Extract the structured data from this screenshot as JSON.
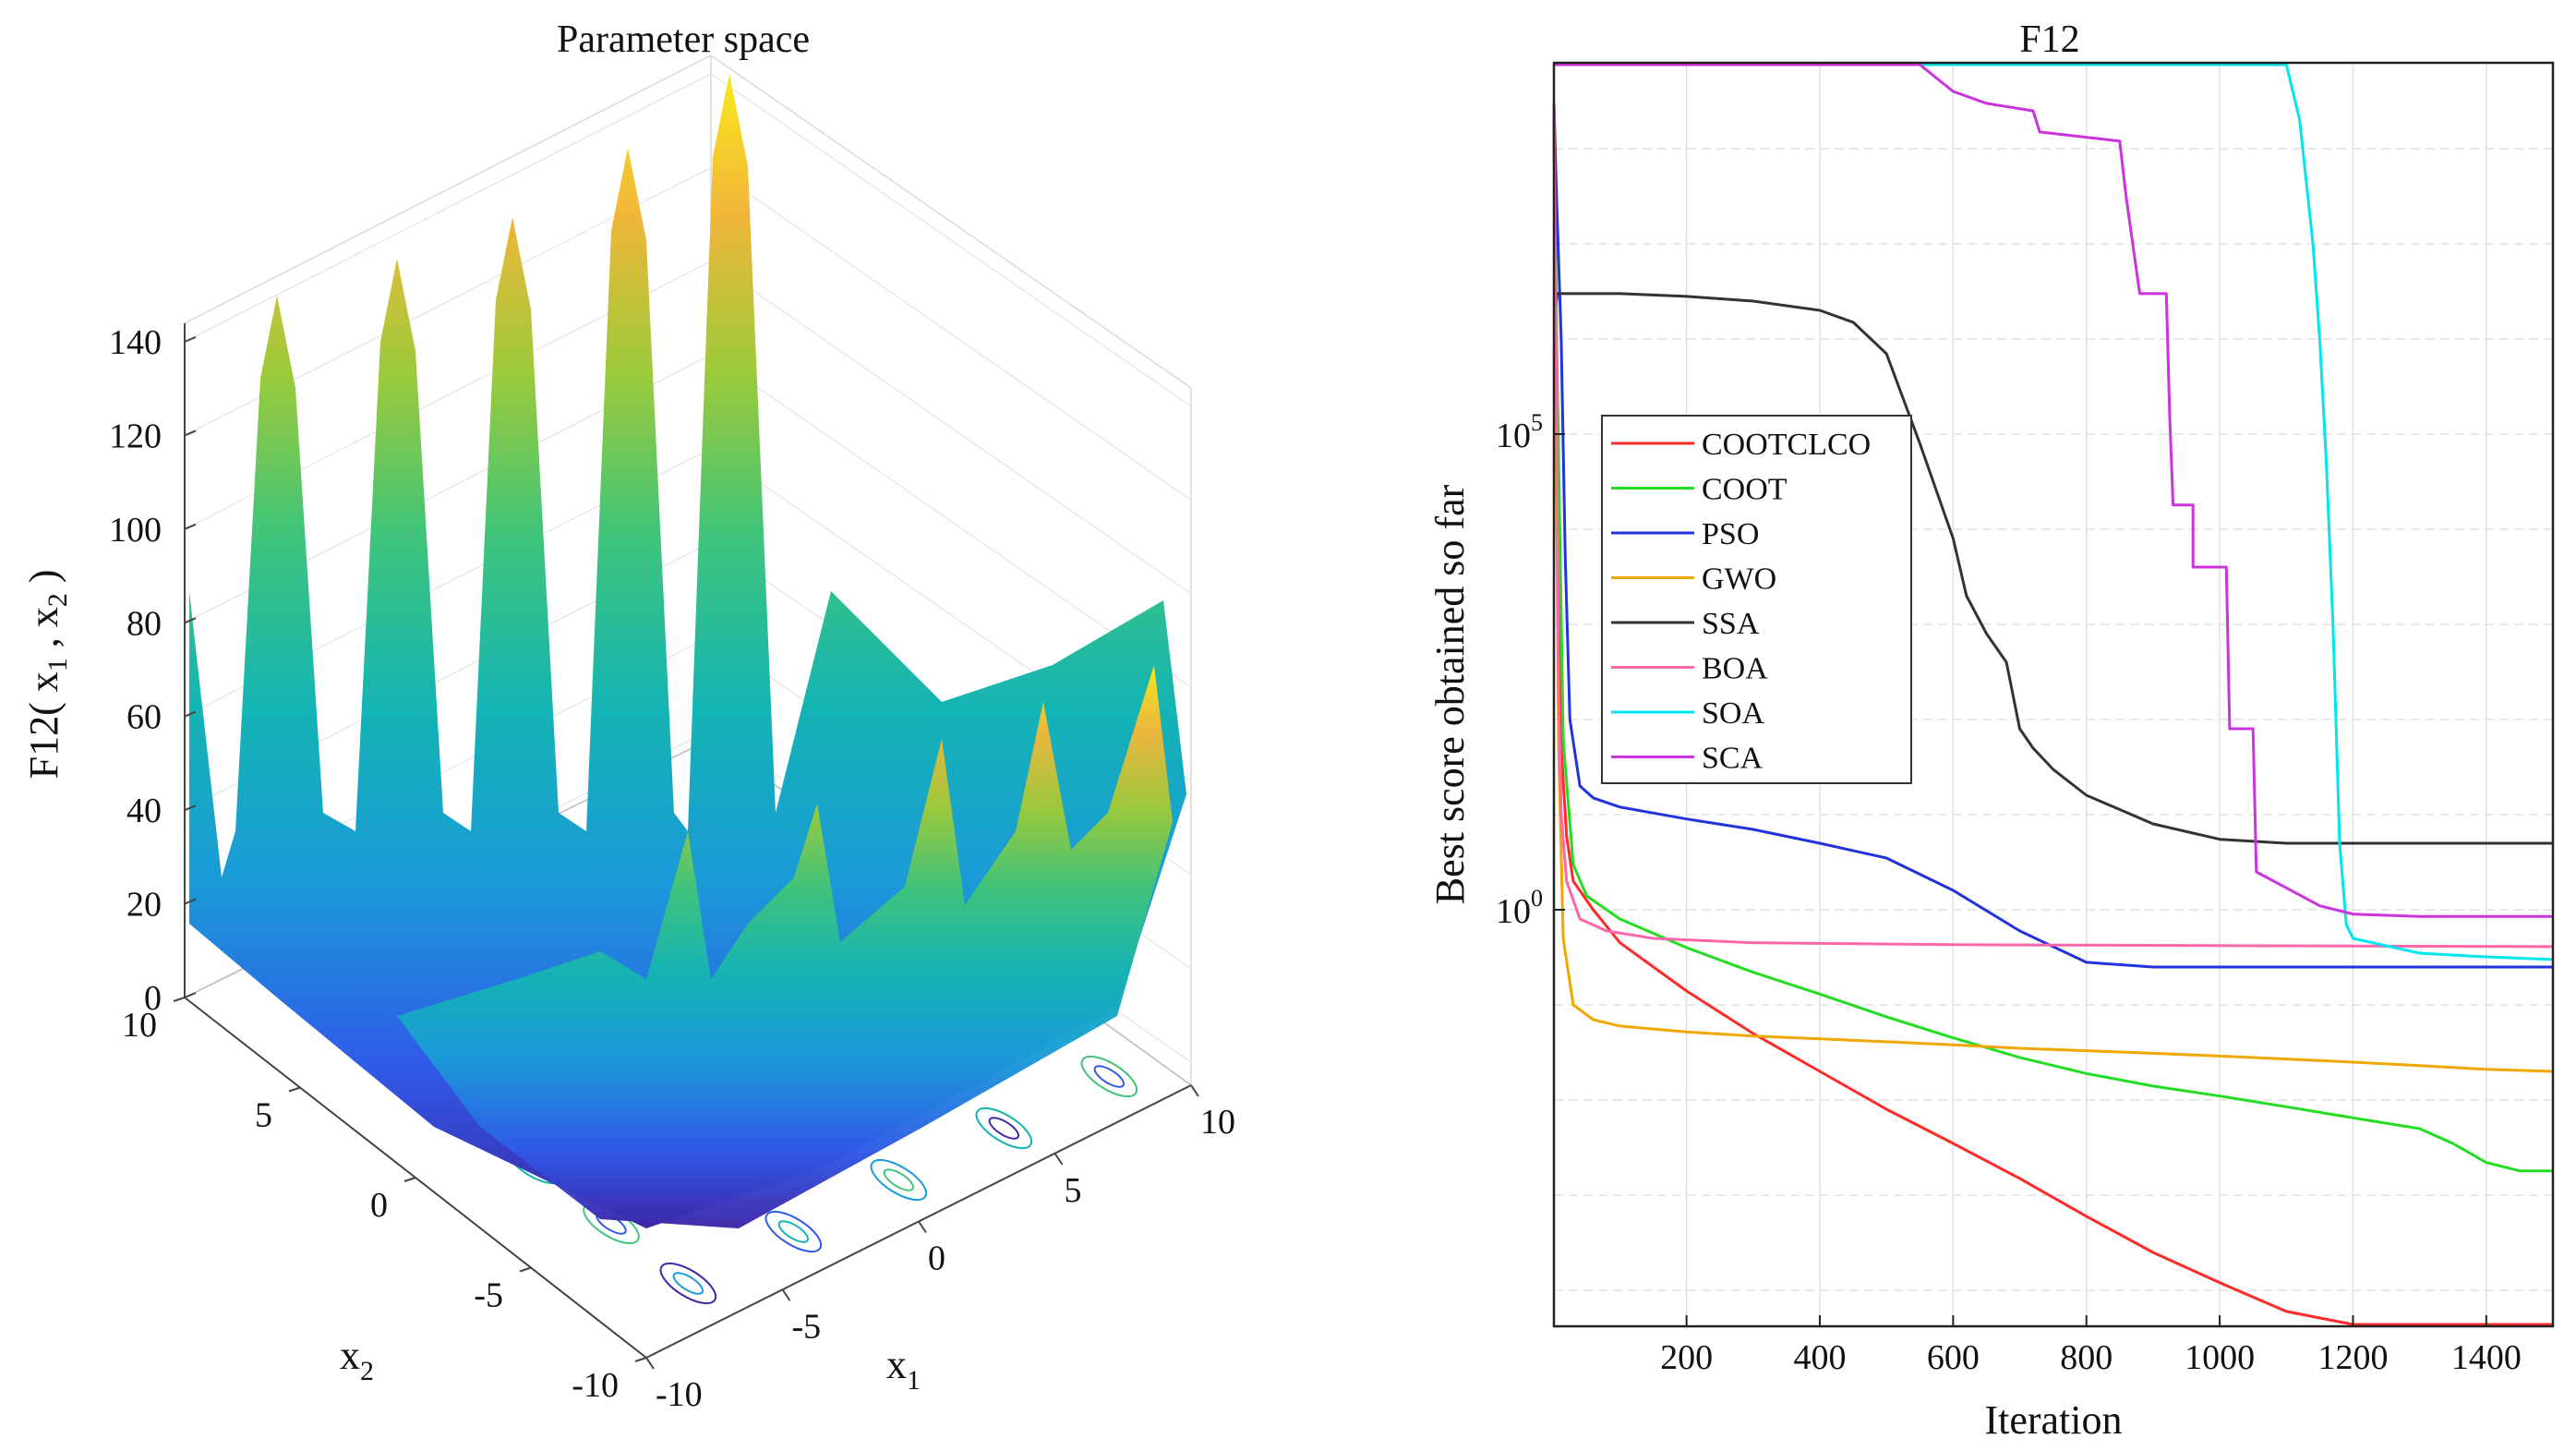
{
  "chart_data": [
    {
      "type": "surface",
      "title": "Parameter space",
      "zlabel": "F12( x",
      "zlabel_sub1": "1",
      "zlabel_sep": " , x",
      "zlabel_sub2": "2",
      "zlabel_close": " )",
      "xlabel": "x",
      "xlabel_sub": "1",
      "ylabel": "x",
      "ylabel_sub": "2",
      "z_ticks": [
        "0",
        "20",
        "40",
        "60",
        "80",
        "100",
        "120",
        "140"
      ],
      "x1_ticks": [
        "-10",
        "-5",
        "0",
        "5",
        "10"
      ],
      "x2_ticks": [
        "-10",
        "-5",
        "0",
        "5",
        "10"
      ],
      "zlim": [
        0,
        150
      ],
      "x1lim": [
        -10,
        10
      ],
      "x2lim": [
        -10,
        10
      ],
      "colormap": [
        "#3e26a8",
        "#2f5ae8",
        "#1b9ad8",
        "#14b4b4",
        "#3fc47a",
        "#9cca3a",
        "#f2b63a",
        "#f9e81c"
      ]
    },
    {
      "type": "line",
      "title": "F12",
      "xlabel": "Iteration",
      "ylabel": "Best score obtained so far",
      "xlim": [
        1,
        1500
      ],
      "y_scale": "log",
      "x_ticks": [
        "200",
        "400",
        "600",
        "800",
        "1000",
        "1200",
        "1400"
      ],
      "y_ticks": [
        {
          "base": "10",
          "exp": "5",
          "value": 100000
        },
        {
          "base": "10",
          "exp": "0",
          "value": 1
        }
      ],
      "grid": true,
      "legend_position": "upper-left",
      "series": [
        {
          "name": "COOTCLCO",
          "color": "#ff2a2a",
          "points": [
            [
              1,
              300000000.0
            ],
            [
              5,
              1000000.0
            ],
            [
              12,
              50
            ],
            [
              20,
              6
            ],
            [
              30,
              2
            ],
            [
              60,
              1
            ],
            [
              100,
              0.45
            ],
            [
              200,
              0.14
            ],
            [
              300,
              0.05
            ],
            [
              400,
              0.02
            ],
            [
              500,
              0.008
            ],
            [
              600,
              0.0035
            ],
            [
              700,
              0.0015
            ],
            [
              800,
              0.0006
            ],
            [
              900,
              0.00025
            ],
            [
              1000,
              0.00012
            ],
            [
              1100,
              6e-05
            ],
            [
              1200,
              3e-05
            ],
            [
              1300,
              1.6e-05
            ],
            [
              1400,
              8e-06
            ],
            [
              1500,
              4e-06
            ]
          ]
        },
        {
          "name": "COOT",
          "color": "#22dd22",
          "points": [
            [
              1,
              300000000.0
            ],
            [
              5,
              1000000.0
            ],
            [
              15,
              60
            ],
            [
              30,
              3
            ],
            [
              50,
              1.4
            ],
            [
              100,
              0.8
            ],
            [
              200,
              0.4
            ],
            [
              300,
              0.22
            ],
            [
              400,
              0.13
            ],
            [
              500,
              0.075
            ],
            [
              600,
              0.045
            ],
            [
              700,
              0.028
            ],
            [
              800,
              0.019
            ],
            [
              900,
              0.014
            ],
            [
              1000,
              0.011
            ],
            [
              1100,
              0.0085
            ],
            [
              1200,
              0.0065
            ],
            [
              1300,
              0.005
            ],
            [
              1350,
              0.0035
            ],
            [
              1400,
              0.0022
            ],
            [
              1450,
              0.0018
            ],
            [
              1500,
              0.0018
            ]
          ]
        },
        {
          "name": "PSO",
          "color": "#2233dd",
          "points": [
            [
              1,
              300000000.0
            ],
            [
              5,
              30000000.0
            ],
            [
              12,
              1000000.0
            ],
            [
              18,
              5000.0
            ],
            [
              25,
              100
            ],
            [
              40,
              20
            ],
            [
              60,
              15
            ],
            [
              100,
              12
            ],
            [
              200,
              9
            ],
            [
              300,
              7
            ],
            [
              400,
              5
            ],
            [
              500,
              3.5
            ],
            [
              600,
              1.6
            ],
            [
              700,
              0.6
            ],
            [
              800,
              0.28
            ],
            [
              900,
              0.25
            ],
            [
              1000,
              0.25
            ],
            [
              1200,
              0.25
            ],
            [
              1500,
              0.25
            ]
          ]
        },
        {
          "name": "GWO",
          "color": "#f0a800",
          "points": [
            [
              1,
              300000000.0
            ],
            [
              4,
              100000.0
            ],
            [
              8,
              50
            ],
            [
              15,
              0.5
            ],
            [
              30,
              0.1
            ],
            [
              60,
              0.07
            ],
            [
              100,
              0.06
            ],
            [
              200,
              0.052
            ],
            [
              300,
              0.047
            ],
            [
              400,
              0.044
            ],
            [
              500,
              0.041
            ],
            [
              600,
              0.038
            ],
            [
              700,
              0.035
            ],
            [
              800,
              0.033
            ],
            [
              900,
              0.031
            ],
            [
              1000,
              0.029
            ],
            [
              1100,
              0.027
            ],
            [
              1200,
              0.025
            ],
            [
              1300,
              0.023
            ],
            [
              1400,
              0.021
            ],
            [
              1500,
              0.02
            ]
          ]
        },
        {
          "name": "SSA",
          "color": "#333333",
          "points": [
            [
              1,
              300000000.0
            ],
            [
              3,
              2000000.0
            ],
            [
              6,
              3000000.0
            ],
            [
              100,
              3000000.0
            ],
            [
              200,
              2800000.0
            ],
            [
              300,
              2500000.0
            ],
            [
              400,
              2000000.0
            ],
            [
              450,
              1500000.0
            ],
            [
              500,
              700000.0
            ],
            [
              550,
              80000.0
            ],
            [
              600,
              8000.0
            ],
            [
              620,
              2000.0
            ],
            [
              650,
              800
            ],
            [
              680,
              400
            ],
            [
              700,
              80
            ],
            [
              720,
              50
            ],
            [
              750,
              30
            ],
            [
              800,
              16
            ],
            [
              900,
              8
            ],
            [
              1000,
              5.5
            ],
            [
              1100,
              5
            ],
            [
              1200,
              5
            ],
            [
              1500,
              5
            ]
          ]
        },
        {
          "name": "BOA",
          "color": "#ff66aa",
          "points": [
            [
              1,
              300000000.0
            ],
            [
              4,
              1000000.0
            ],
            [
              8,
              200
            ],
            [
              12,
              10
            ],
            [
              20,
              2
            ],
            [
              40,
              0.8
            ],
            [
              80,
              0.6
            ],
            [
              150,
              0.5
            ],
            [
              300,
              0.45
            ],
            [
              600,
              0.43
            ],
            [
              1000,
              0.42
            ],
            [
              1500,
              0.41
            ]
          ]
        },
        {
          "name": "SOA",
          "color": "#00e5ee",
          "points": [
            [
              1,
              3000000000.0
            ],
            [
              1050,
              3000000000.0
            ],
            [
              1080,
              2500000000.0
            ],
            [
              1100,
              1000000000.0
            ],
            [
              1120,
              200000000.0
            ],
            [
              1140,
              10000000.0
            ],
            [
              1150,
              1000000.0
            ],
            [
              1160,
              50000.0
            ],
            [
              1170,
              1000.0
            ],
            [
              1180,
              5
            ],
            [
              1190,
              0.7
            ],
            [
              1200,
              0.5
            ],
            [
              1300,
              0.35
            ],
            [
              1400,
              0.32
            ],
            [
              1500,
              0.3
            ]
          ]
        },
        {
          "name": "SCA",
          "color": "#cc33dd",
          "points": [
            [
              1,
              2500000000.0
            ],
            [
              100,
              2500000000.0
            ],
            [
              400,
              2400000000.0
            ],
            [
              500,
              1600000000.0
            ],
            [
              550,
              800000000.0
            ],
            [
              600,
              400000000.0
            ],
            [
              650,
              300000000.0
            ],
            [
              720,
              250000000.0
            ],
            [
              730,
              150000000.0
            ],
            [
              850,
              120000000.0
            ],
            [
              860,
              30000000.0
            ],
            [
              880,
              3000000.0
            ],
            [
              920,
              3000000.0
            ],
            [
              925,
              150000.0
            ],
            [
              930,
              18000.0
            ],
            [
              960,
              18000.0
            ],
            [
              960,
              4000.0
            ],
            [
              1010,
              4000.0
            ],
            [
              1015,
              80
            ],
            [
              1050,
              80
            ],
            [
              1055,
              2.5
            ],
            [
              1100,
              1.7
            ],
            [
              1150,
              1.1
            ],
            [
              1200,
              0.9
            ],
            [
              1300,
              0.85
            ],
            [
              1500,
              0.85
            ]
          ]
        }
      ]
    }
  ]
}
